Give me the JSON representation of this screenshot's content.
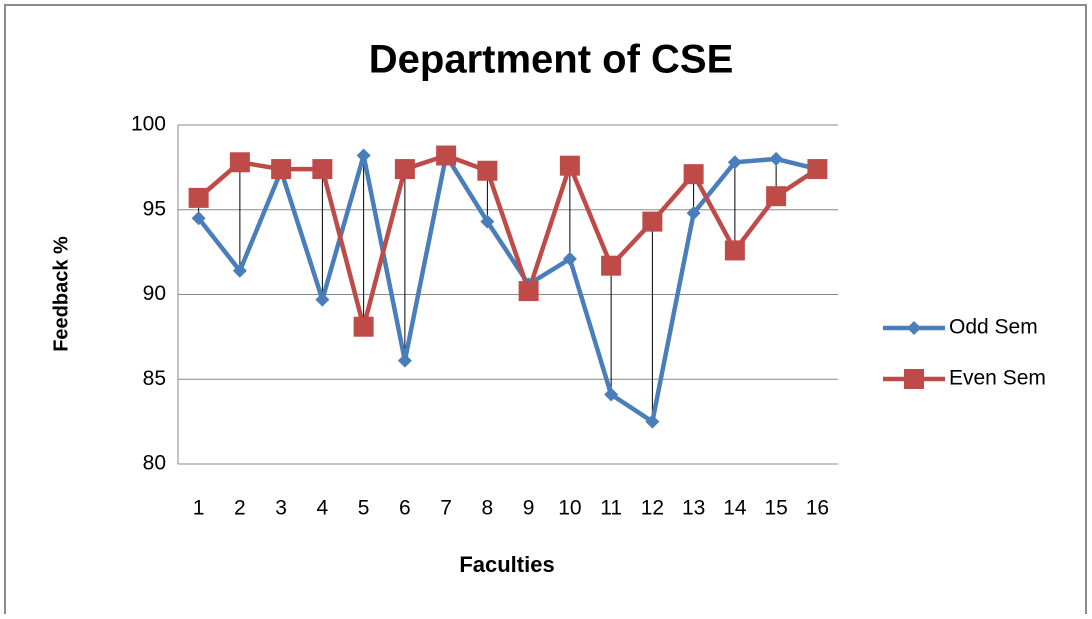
{
  "chart_data": {
    "type": "line",
    "title": "Department of CSE",
    "x_label": "Faculties",
    "y_label": "Feedback %",
    "categories": [
      "1",
      "2",
      "3",
      "4",
      "5",
      "6",
      "7",
      "8",
      "9",
      "10",
      "11",
      "12",
      "13",
      "14",
      "15",
      "16"
    ],
    "series": [
      {
        "name": "Odd Sem",
        "color": "#4a7ebb",
        "marker": "diamond",
        "values": [
          94.5,
          91.4,
          97.3,
          89.7,
          98.2,
          86.1,
          98.2,
          94.3,
          90.6,
          92.1,
          84.1,
          82.5,
          94.8,
          97.8,
          98.0,
          97.4
        ]
      },
      {
        "name": "Even Sem",
        "color": "#be4b48",
        "marker": "square",
        "values": [
          95.7,
          97.8,
          97.4,
          97.4,
          88.1,
          97.4,
          98.2,
          97.3,
          90.2,
          97.6,
          91.7,
          94.3,
          97.1,
          92.6,
          95.8,
          97.4
        ]
      }
    ],
    "ylim": [
      80,
      100
    ],
    "yticks": [
      80,
      85,
      90,
      95,
      100
    ],
    "grid": true,
    "drop_lines": true,
    "legend": "right"
  }
}
